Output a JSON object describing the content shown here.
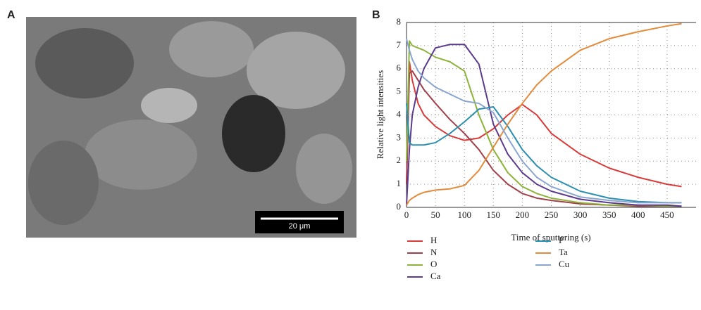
{
  "panels": {
    "a_label": "A",
    "b_label": "B",
    "scale_bar": "20 μm"
  },
  "chart_data": {
    "type": "line",
    "x_label": "Time of sputtering (s)",
    "y_label": "Relative light intensities",
    "x": [
      0,
      5,
      10,
      20,
      30,
      50,
      75,
      100,
      125,
      150,
      175,
      200,
      225,
      250,
      300,
      350,
      400,
      450,
      475
    ],
    "series": [
      {
        "name": "H",
        "color": "#d93a3a",
        "values": [
          1.0,
          6.3,
          5.5,
          4.5,
          4.0,
          3.5,
          3.1,
          2.9,
          3.0,
          3.4,
          4.0,
          4.45,
          4.0,
          3.2,
          2.3,
          1.7,
          1.3,
          1.0,
          0.9
        ]
      },
      {
        "name": "N",
        "color": "#a0404a",
        "values": [
          1.0,
          5.8,
          5.9,
          5.5,
          5.1,
          4.5,
          3.8,
          3.2,
          2.5,
          1.6,
          1.0,
          0.6,
          0.4,
          0.3,
          0.15,
          0.1,
          0.05,
          0.05,
          0.05
        ]
      },
      {
        "name": "O",
        "color": "#8db33a",
        "values": [
          2.0,
          7.2,
          7.0,
          6.9,
          6.8,
          6.5,
          6.3,
          5.9,
          4.0,
          2.5,
          1.5,
          0.9,
          0.6,
          0.4,
          0.2,
          0.1,
          0.1,
          0.05,
          0.05
        ]
      },
      {
        "name": "Ca",
        "color": "#5c3a8c",
        "values": [
          0.1,
          2.5,
          4.0,
          5.2,
          6.0,
          6.9,
          7.05,
          7.05,
          6.2,
          3.6,
          2.3,
          1.5,
          1.0,
          0.7,
          0.35,
          0.2,
          0.1,
          0.1,
          0.05
        ]
      },
      {
        "name": "P",
        "color": "#2b8fb0",
        "values": [
          4.5,
          2.8,
          2.7,
          2.7,
          2.7,
          2.8,
          3.2,
          3.7,
          4.25,
          4.35,
          3.5,
          2.5,
          1.8,
          1.3,
          0.7,
          0.4,
          0.25,
          0.2,
          0.2
        ]
      },
      {
        "name": "Ta",
        "color": "#e38b3a",
        "values": [
          0.1,
          0.3,
          0.4,
          0.55,
          0.65,
          0.75,
          0.8,
          0.95,
          1.6,
          2.6,
          3.6,
          4.5,
          5.3,
          5.9,
          6.8,
          7.3,
          7.6,
          7.85,
          7.95
        ]
      },
      {
        "name": "Cu",
        "color": "#8aa5cf",
        "values": [
          7.3,
          6.8,
          6.4,
          5.9,
          5.6,
          5.2,
          4.9,
          4.6,
          4.5,
          4.1,
          3.0,
          2.0,
          1.3,
          0.9,
          0.45,
          0.3,
          0.2,
          0.2,
          0.2
        ]
      }
    ],
    "xlim": [
      0,
      500
    ],
    "ylim": [
      0,
      8
    ],
    "xticks": [
      0,
      50,
      100,
      150,
      200,
      250,
      300,
      350,
      400,
      450
    ],
    "yticks": [
      0,
      1,
      2,
      3,
      4,
      5,
      6,
      7,
      8
    ],
    "grid": true
  }
}
